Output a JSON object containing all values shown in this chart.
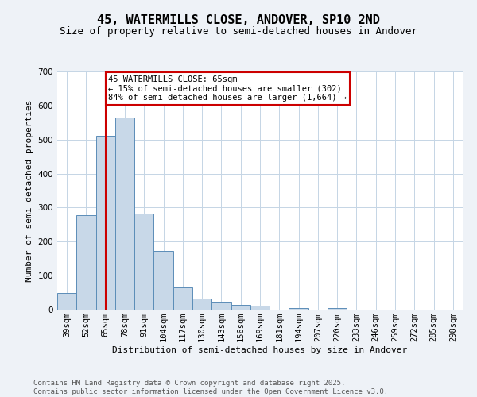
{
  "title": "45, WATERMILLS CLOSE, ANDOVER, SP10 2ND",
  "subtitle": "Size of property relative to semi-detached houses in Andover",
  "xlabel": "Distribution of semi-detached houses by size in Andover",
  "ylabel": "Number of semi-detached properties",
  "categories": [
    "39sqm",
    "52sqm",
    "65sqm",
    "78sqm",
    "91sqm",
    "104sqm",
    "117sqm",
    "130sqm",
    "143sqm",
    "156sqm",
    "169sqm",
    "181sqm",
    "194sqm",
    "207sqm",
    "220sqm",
    "233sqm",
    "246sqm",
    "259sqm",
    "272sqm",
    "285sqm",
    "298sqm"
  ],
  "values": [
    50,
    278,
    510,
    565,
    282,
    172,
    65,
    32,
    23,
    13,
    11,
    0,
    5,
    0,
    5,
    0,
    0,
    0,
    0,
    0,
    0
  ],
  "bar_color": "#c8d8e8",
  "bar_edge_color": "#5b8db8",
  "vline_x_index": 2,
  "vline_color": "#cc0000",
  "annotation_line1": "45 WATERMILLS CLOSE: 65sqm",
  "annotation_line2": "← 15% of semi-detached houses are smaller (302)",
  "annotation_line3": "84% of semi-detached houses are larger (1,664) →",
  "annotation_box_color": "#ffffff",
  "annotation_box_edge_color": "#cc0000",
  "footer_text": "Contains HM Land Registry data © Crown copyright and database right 2025.\nContains public sector information licensed under the Open Government Licence v3.0.",
  "bg_color": "#eef2f7",
  "plot_bg_color": "#ffffff",
  "grid_color": "#c5d5e5",
  "ylim": [
    0,
    700
  ],
  "yticks": [
    0,
    100,
    200,
    300,
    400,
    500,
    600,
    700
  ],
  "title_fontsize": 11,
  "subtitle_fontsize": 9,
  "axis_label_fontsize": 8,
  "tick_fontsize": 7.5,
  "annotation_fontsize": 7.5,
  "footer_fontsize": 6.5
}
